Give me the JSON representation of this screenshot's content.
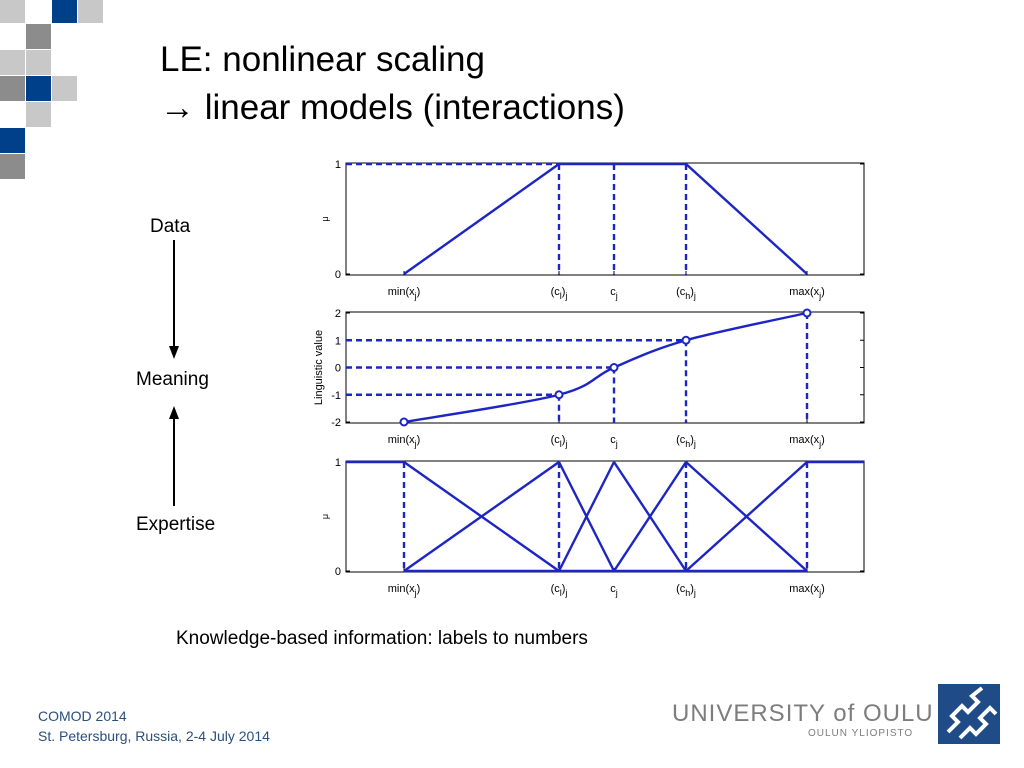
{
  "slide": {
    "title_line1": "LE: nonlinear scaling",
    "title_line2": "→ linear models (interactions)",
    "label_data": "Data",
    "label_meaning": "Meaning",
    "label_expertise": "Expertise",
    "caption": "Knowledge-based information: labels to numbers",
    "footer_line1": "COMOD 2014",
    "footer_line2": "St. Petersburg, Russia, 2-4 July 2014",
    "university_name": "UNIVERSITY of OULU",
    "university_subname": "OULUN YLIOPISTO",
    "logo_icon": "university-logo-icon"
  },
  "colors": {
    "accent_blue": "#003f8a",
    "gray": "#8c8c8c",
    "light_gray": "#c8c8c8",
    "line_blue": "#1d25c4"
  },
  "chart_data": [
    {
      "type": "line",
      "title": "",
      "ylabel": "μ",
      "xlabel": "",
      "ylim": [
        0,
        1
      ],
      "yticks": [
        "0",
        "1"
      ],
      "xticks": [
        "min(x_j)",
        "(c_l)_j",
        "c_j",
        "(c_h)_j",
        "max(x_j)"
      ],
      "x": [
        0,
        1,
        1.36,
        1.82,
        2.6
      ],
      "series": [
        {
          "values": [
            0,
            1,
            1,
            1,
            0
          ]
        }
      ],
      "reference_lines": "dashed verticals at (c_l)_j, c_j, (c_h)_j; dashed horizontal at 1",
      "grid": false
    },
    {
      "type": "line",
      "title": "",
      "ylabel": "Linguistic value",
      "xlabel": "",
      "ylim": [
        -2,
        2
      ],
      "yticks": [
        "-2",
        "-1",
        "0",
        "1",
        "2"
      ],
      "xticks": [
        "min(x_j)",
        "(c_l)_j",
        "c_j",
        "(c_h)_j",
        "max(x_j)"
      ],
      "x": [
        0,
        1,
        1.36,
        1.82,
        2.6
      ],
      "series": [
        {
          "values": [
            -2,
            -1,
            0,
            1,
            2
          ]
        }
      ],
      "markers": "open circles at each point",
      "reference_lines": "dashed verticals from points to bottom axis; dashed horizontals from y axis to points at -1, 0, 1",
      "grid": false
    },
    {
      "type": "line",
      "title": "",
      "ylabel": "μ",
      "xlabel": "",
      "ylim": [
        0,
        1
      ],
      "yticks": [
        "0",
        "1"
      ],
      "xticks": [
        "min(x_j)",
        "(c_l)_j",
        "c_j",
        "(c_h)_j",
        "max(x_j)"
      ],
      "x": [
        -0.3,
        0,
        1,
        1.36,
        1.82,
        2.6,
        2.9
      ],
      "series": [
        {
          "values": [
            1,
            1,
            0,
            0,
            0,
            0,
            0
          ]
        },
        {
          "values": [
            0,
            0,
            1,
            0,
            0,
            0,
            0
          ]
        },
        {
          "values": [
            0,
            0,
            0,
            1,
            0,
            0,
            0
          ]
        },
        {
          "values": [
            0,
            0,
            0,
            0,
            1,
            0,
            0
          ]
        },
        {
          "values": [
            0,
            0,
            0,
            0,
            0,
            1,
            1
          ]
        }
      ],
      "reference_lines": "dashed verticals at min(x_j), (c_l)_j, (c_h)_j, max(x_j)",
      "grid": false
    }
  ]
}
